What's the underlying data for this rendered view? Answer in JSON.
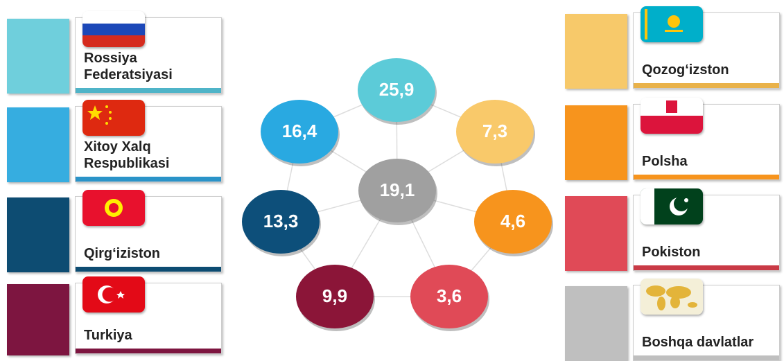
{
  "left": [
    {
      "name": "Rossiya Federatsiyasi"
    },
    {
      "name": "Xitoy Xalq Respublikasi"
    },
    {
      "name": "Qirg‘iziston"
    },
    {
      "name": "Turkiya"
    }
  ],
  "right": [
    {
      "name": "Qozog‘izston"
    },
    {
      "name": "Polsha"
    },
    {
      "name": "Pokiston"
    },
    {
      "name": "Boshqa davlatlar"
    }
  ],
  "center": "19,1",
  "nodes": [
    "25,9",
    "7,3",
    "4,6",
    "3,6",
    "9,9",
    "13,3",
    "16,4"
  ]
}
